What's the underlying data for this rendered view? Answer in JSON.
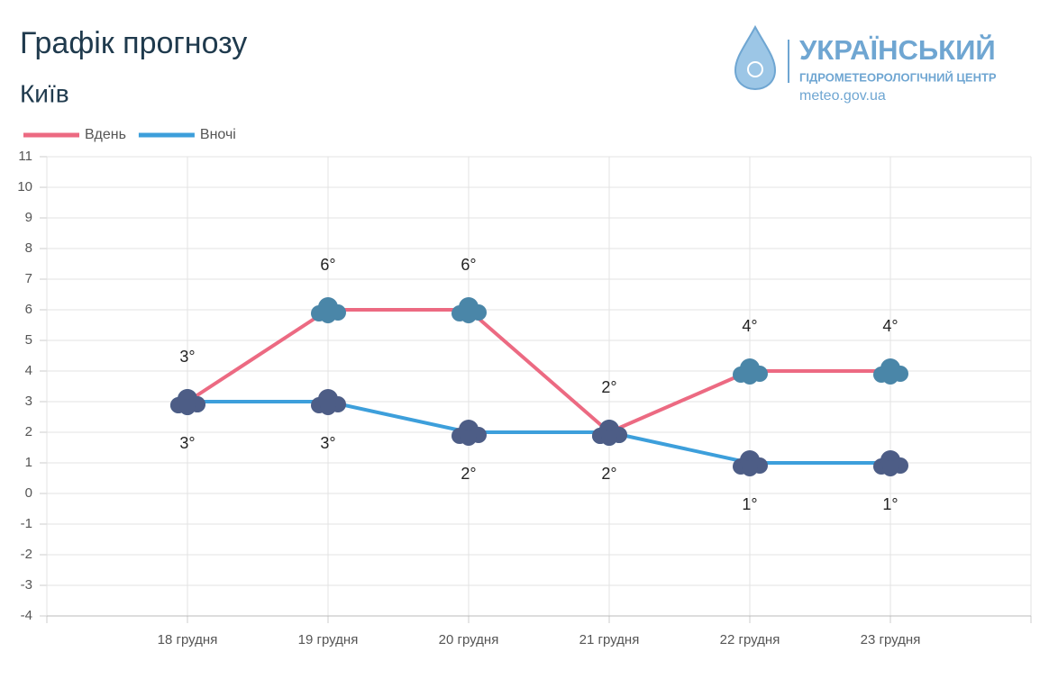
{
  "chart_data": {
    "type": "line",
    "title": "Графік прогнозу",
    "subtitle": "Київ",
    "categories": [
      "18 грудня",
      "19 грудня",
      "20 грудня",
      "21 грудня",
      "22 грудня",
      "23 грудня"
    ],
    "series": [
      {
        "name": "Вдень",
        "color": "#ec6a82",
        "values": [
          3,
          6,
          6,
          2,
          4,
          4
        ],
        "value_labels": [
          "3°",
          "6°",
          "6°",
          "2°",
          "4°",
          "4°"
        ]
      },
      {
        "name": "Вночі",
        "color": "#3d9fdb",
        "values": [
          3,
          3,
          2,
          2,
          1,
          1
        ],
        "value_labels": [
          "3°",
          "3°",
          "2°",
          "2°",
          "1°",
          "1°"
        ]
      }
    ],
    "ylim": [
      -4,
      11
    ],
    "yticks": [
      -4,
      -3,
      -2,
      -1,
      0,
      1,
      2,
      3,
      4,
      5,
      6,
      7,
      8,
      9,
      10,
      11
    ],
    "grid": true,
    "legend": "top-left"
  },
  "logo": {
    "name": "УКРАЇНСЬКИЙ",
    "subname": "ГІДРОМЕТЕОРОЛОГІЧНИЙ ЦЕНТР",
    "site": "meteo.gov.ua"
  }
}
